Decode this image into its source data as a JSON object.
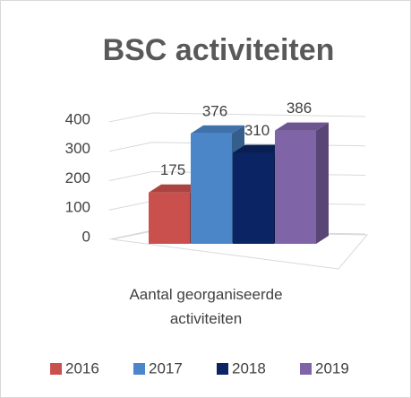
{
  "chart_data": {
    "type": "bar3d",
    "title": "BSC activiteiten",
    "categories": [
      "Aantal georganiseerde activiteiten"
    ],
    "series": [
      {
        "name": "2016",
        "color": "#c9504c",
        "values": [
          175
        ]
      },
      {
        "name": "2017",
        "color": "#4a86c8",
        "values": [
          376
        ]
      },
      {
        "name": "2018",
        "color": "#0b2463",
        "values": [
          310
        ]
      },
      {
        "name": "2019",
        "color": "#8064a8",
        "values": [
          386
        ]
      }
    ],
    "ylim": [
      0,
      400
    ],
    "yticks": [
      0,
      100,
      200,
      300,
      400
    ],
    "grid": true,
    "legend": "bottom"
  }
}
